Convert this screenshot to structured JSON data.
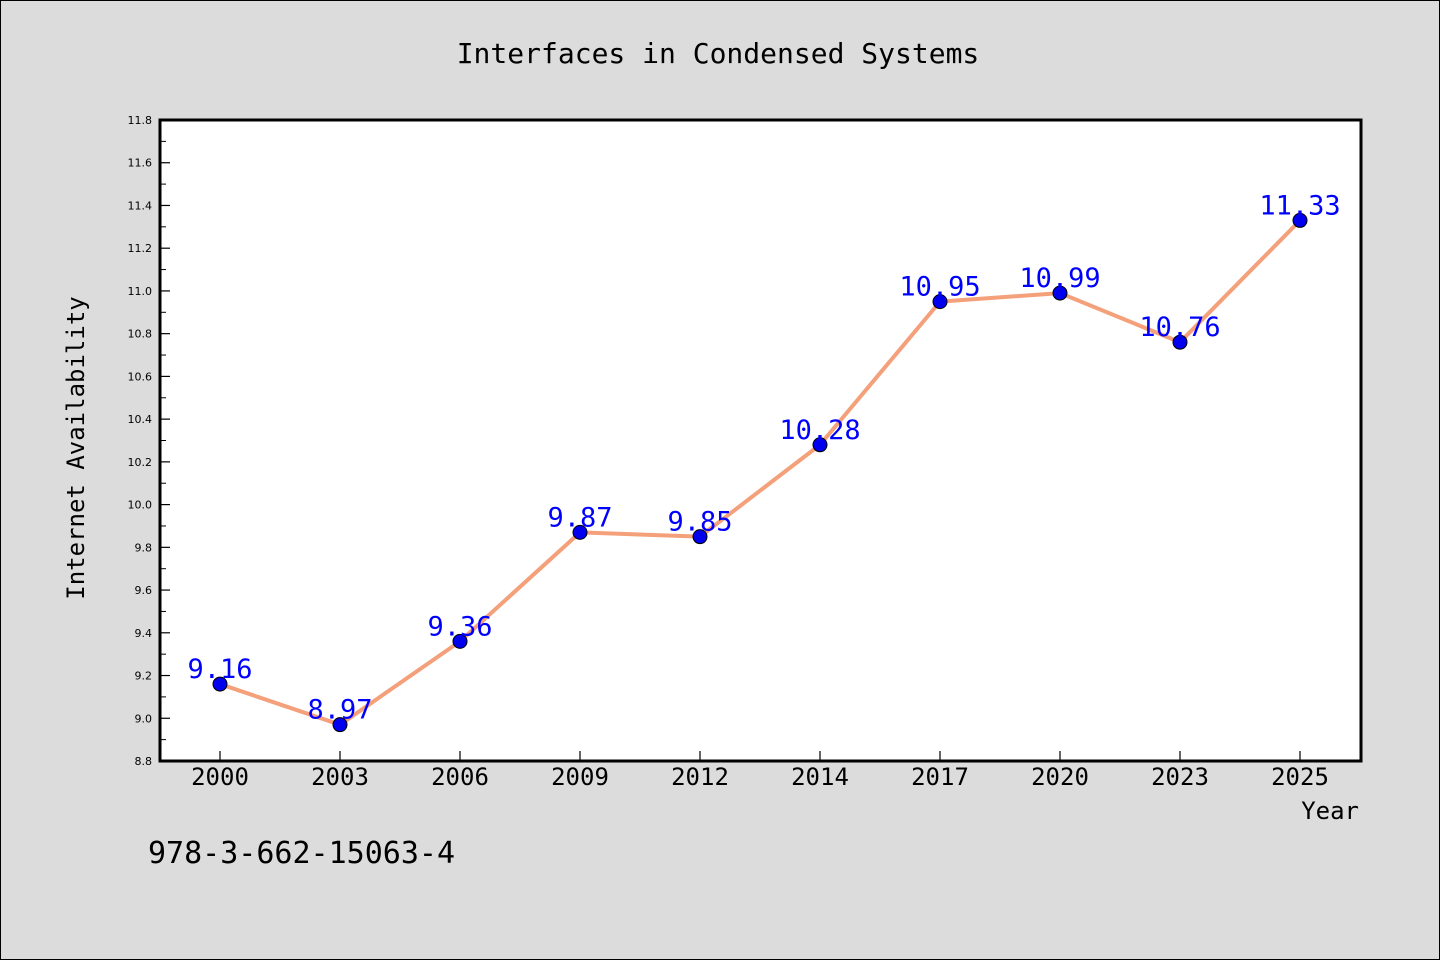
{
  "chart_data": {
    "type": "line",
    "title": "Interfaces in Condensed Systems",
    "xlabel": "Year",
    "ylabel": "Internet Availability",
    "categories": [
      "2000",
      "2003",
      "2006",
      "2009",
      "2012",
      "2014",
      "2017",
      "2020",
      "2023",
      "2025"
    ],
    "series": [
      {
        "values": [
          9.16,
          8.97,
          9.36,
          9.87,
          9.85,
          10.28,
          10.95,
          10.99,
          10.76,
          11.33
        ],
        "labels": [
          "9.16",
          "8.97",
          "9.36",
          "9.87",
          "9.85",
          "10.28",
          "10.95",
          "10.99",
          "10.76",
          "11.33"
        ],
        "line_color": "#f4a07a",
        "marker_color": "#0000ee"
      }
    ],
    "ylim": [
      8.8,
      11.8
    ],
    "yticks": [
      "8.8",
      "9.0",
      "9.2",
      "9.4",
      "9.6",
      "9.8",
      "10.0",
      "10.2",
      "10.4",
      "10.6",
      "10.8",
      "11.0",
      "11.2",
      "11.4",
      "11.6",
      "11.8"
    ],
    "grid": false,
    "legend": false,
    "label_color": "#0000ff",
    "background": "#dcdcdc",
    "plot_background": "#ffffff"
  },
  "annotation": "978-3-662-15063-4"
}
